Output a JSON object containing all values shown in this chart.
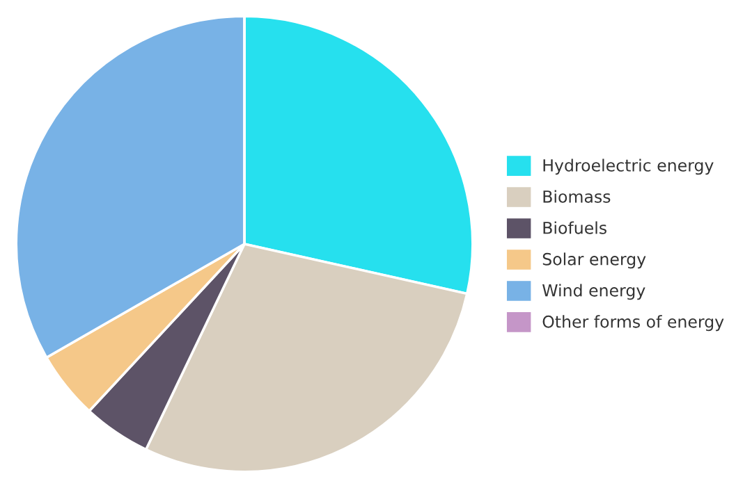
{
  "chart_data": {
    "type": "pie",
    "categories": [
      "Hydroelectric energy",
      "Biomass",
      "Biofuels",
      "Solar energy",
      "Wind energy",
      "Other forms of energy"
    ],
    "values": [
      28.5,
      28.6,
      4.8,
      4.8,
      33.3,
      0
    ],
    "colors": [
      "#26e0ee",
      "#d9cfbf",
      "#5d5367",
      "#f5c889",
      "#78b2e6",
      "#c596c8"
    ],
    "legend": "right"
  }
}
